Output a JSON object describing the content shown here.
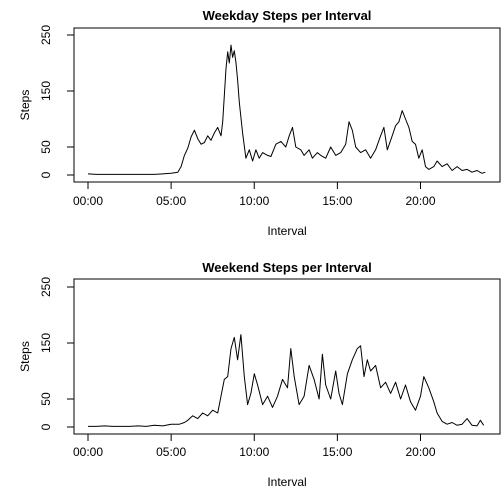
{
  "chart_data": [
    {
      "type": "line",
      "title": "Weekday Steps per Interval",
      "xlabel": "Interval",
      "ylabel": "Steps",
      "x_unit": "time of day (hours)",
      "xlim": [
        0,
        24
      ],
      "ylim": [
        0,
        250
      ],
      "x_ticks": [
        0,
        5,
        10,
        15,
        20
      ],
      "x_tick_labels": [
        "00:00",
        "05:00",
        "10:00",
        "15:00",
        "20:00"
      ],
      "y_ticks": [
        0,
        50,
        150,
        250
      ],
      "y_tick_labels": [
        "0",
        "50",
        "150",
        "250"
      ],
      "grid": false,
      "series": [
        {
          "color": "#000000",
          "points": [
            [
              0.0,
              2
            ],
            [
              0.5,
              1
            ],
            [
              1.0,
              1
            ],
            [
              1.5,
              1
            ],
            [
              2.0,
              1
            ],
            [
              2.5,
              1
            ],
            [
              3.0,
              1
            ],
            [
              3.5,
              1
            ],
            [
              4.0,
              1
            ],
            [
              4.5,
              2
            ],
            [
              5.0,
              3
            ],
            [
              5.4,
              5
            ],
            [
              5.6,
              15
            ],
            [
              5.8,
              35
            ],
            [
              6.0,
              48
            ],
            [
              6.2,
              68
            ],
            [
              6.4,
              80
            ],
            [
              6.6,
              65
            ],
            [
              6.8,
              55
            ],
            [
              7.0,
              58
            ],
            [
              7.2,
              70
            ],
            [
              7.4,
              62
            ],
            [
              7.6,
              75
            ],
            [
              7.8,
              85
            ],
            [
              8.0,
              70
            ],
            [
              8.1,
              95
            ],
            [
              8.3,
              190
            ],
            [
              8.4,
              220
            ],
            [
              8.5,
              200
            ],
            [
              8.6,
              232
            ],
            [
              8.7,
              210
            ],
            [
              8.8,
              222
            ],
            [
              8.9,
              200
            ],
            [
              9.0,
              170
            ],
            [
              9.1,
              130
            ],
            [
              9.3,
              75
            ],
            [
              9.5,
              30
            ],
            [
              9.7,
              45
            ],
            [
              9.9,
              25
            ],
            [
              10.1,
              45
            ],
            [
              10.3,
              30
            ],
            [
              10.5,
              40
            ],
            [
              10.8,
              35
            ],
            [
              11.0,
              33
            ],
            [
              11.3,
              55
            ],
            [
              11.6,
              60
            ],
            [
              11.9,
              50
            ],
            [
              12.1,
              70
            ],
            [
              12.3,
              85
            ],
            [
              12.5,
              50
            ],
            [
              12.8,
              45
            ],
            [
              13.0,
              35
            ],
            [
              13.3,
              45
            ],
            [
              13.5,
              30
            ],
            [
              13.8,
              40
            ],
            [
              14.0,
              35
            ],
            [
              14.3,
              30
            ],
            [
              14.6,
              50
            ],
            [
              14.9,
              35
            ],
            [
              15.2,
              40
            ],
            [
              15.5,
              55
            ],
            [
              15.7,
              95
            ],
            [
              15.9,
              80
            ],
            [
              16.1,
              50
            ],
            [
              16.4,
              40
            ],
            [
              16.7,
              45
            ],
            [
              17.0,
              30
            ],
            [
              17.3,
              45
            ],
            [
              17.6,
              70
            ],
            [
              17.8,
              85
            ],
            [
              18.0,
              45
            ],
            [
              18.3,
              70
            ],
            [
              18.5,
              88
            ],
            [
              18.7,
              95
            ],
            [
              18.9,
              115
            ],
            [
              19.1,
              100
            ],
            [
              19.3,
              85
            ],
            [
              19.5,
              60
            ],
            [
              19.7,
              55
            ],
            [
              19.9,
              30
            ],
            [
              20.1,
              45
            ],
            [
              20.3,
              15
            ],
            [
              20.5,
              10
            ],
            [
              20.8,
              15
            ],
            [
              21.0,
              25
            ],
            [
              21.3,
              15
            ],
            [
              21.6,
              20
            ],
            [
              21.9,
              8
            ],
            [
              22.2,
              15
            ],
            [
              22.5,
              8
            ],
            [
              22.8,
              10
            ],
            [
              23.1,
              5
            ],
            [
              23.4,
              8
            ],
            [
              23.7,
              3
            ],
            [
              23.9,
              5
            ]
          ]
        }
      ]
    },
    {
      "type": "line",
      "title": "Weekend Steps per Interval",
      "xlabel": "Interval",
      "ylabel": "Steps",
      "x_unit": "time of day (hours)",
      "xlim": [
        0,
        24
      ],
      "ylim": [
        0,
        250
      ],
      "x_ticks": [
        0,
        5,
        10,
        15,
        20
      ],
      "x_tick_labels": [
        "00:00",
        "05:00",
        "10:00",
        "15:00",
        "20:00"
      ],
      "y_ticks": [
        0,
        50,
        150,
        250
      ],
      "y_tick_labels": [
        "0",
        "50",
        "150",
        "250"
      ],
      "grid": false,
      "series": [
        {
          "color": "#000000",
          "points": [
            [
              0.0,
              1
            ],
            [
              0.5,
              1
            ],
            [
              1.0,
              2
            ],
            [
              1.5,
              1
            ],
            [
              2.0,
              1
            ],
            [
              2.5,
              1
            ],
            [
              3.0,
              2
            ],
            [
              3.5,
              1
            ],
            [
              4.0,
              3
            ],
            [
              4.5,
              2
            ],
            [
              5.0,
              5
            ],
            [
              5.5,
              5
            ],
            [
              5.8,
              8
            ],
            [
              6.0,
              12
            ],
            [
              6.3,
              20
            ],
            [
              6.6,
              15
            ],
            [
              6.9,
              25
            ],
            [
              7.2,
              20
            ],
            [
              7.5,
              30
            ],
            [
              7.8,
              25
            ],
            [
              8.0,
              55
            ],
            [
              8.2,
              85
            ],
            [
              8.4,
              90
            ],
            [
              8.6,
              140
            ],
            [
              8.8,
              160
            ],
            [
              9.0,
              120
            ],
            [
              9.2,
              165
            ],
            [
              9.4,
              90
            ],
            [
              9.6,
              40
            ],
            [
              9.8,
              60
            ],
            [
              10.0,
              95
            ],
            [
              10.2,
              75
            ],
            [
              10.5,
              40
            ],
            [
              10.8,
              55
            ],
            [
              11.1,
              35
            ],
            [
              11.4,
              55
            ],
            [
              11.7,
              85
            ],
            [
              12.0,
              70
            ],
            [
              12.2,
              140
            ],
            [
              12.4,
              90
            ],
            [
              12.7,
              40
            ],
            [
              13.0,
              55
            ],
            [
              13.3,
              110
            ],
            [
              13.6,
              85
            ],
            [
              13.9,
              50
            ],
            [
              14.1,
              130
            ],
            [
              14.3,
              75
            ],
            [
              14.6,
              50
            ],
            [
              14.9,
              100
            ],
            [
              15.1,
              60
            ],
            [
              15.3,
              40
            ],
            [
              15.6,
              95
            ],
            [
              15.9,
              120
            ],
            [
              16.2,
              140
            ],
            [
              16.4,
              145
            ],
            [
              16.6,
              90
            ],
            [
              16.8,
              120
            ],
            [
              17.0,
              100
            ],
            [
              17.3,
              110
            ],
            [
              17.6,
              70
            ],
            [
              17.9,
              80
            ],
            [
              18.2,
              60
            ],
            [
              18.5,
              80
            ],
            [
              18.8,
              50
            ],
            [
              19.1,
              75
            ],
            [
              19.4,
              45
            ],
            [
              19.7,
              30
            ],
            [
              20.0,
              55
            ],
            [
              20.2,
              90
            ],
            [
              20.5,
              70
            ],
            [
              20.8,
              45
            ],
            [
              21.0,
              25
            ],
            [
              21.3,
              10
            ],
            [
              21.6,
              5
            ],
            [
              21.9,
              8
            ],
            [
              22.2,
              3
            ],
            [
              22.5,
              5
            ],
            [
              22.8,
              15
            ],
            [
              23.1,
              3
            ],
            [
              23.4,
              2
            ],
            [
              23.6,
              12
            ],
            [
              23.8,
              3
            ]
          ]
        }
      ]
    }
  ]
}
